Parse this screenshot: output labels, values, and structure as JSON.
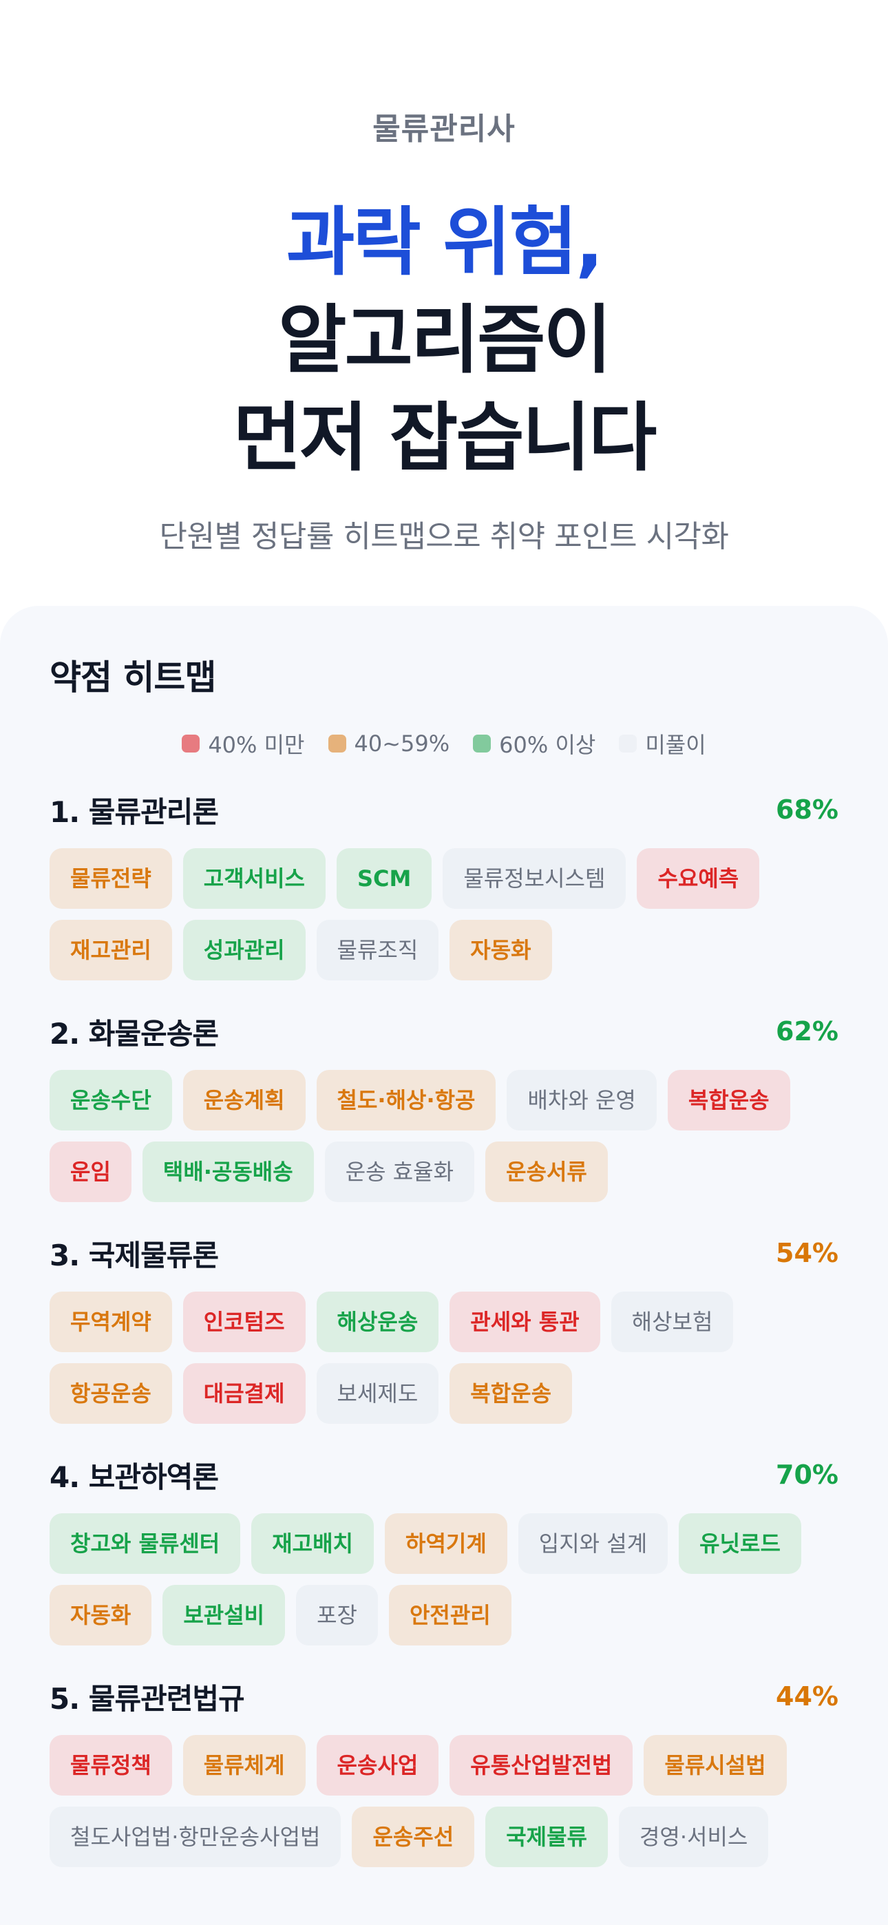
{
  "hero": {
    "eyebrow": "물류관리사",
    "headline_accent": "과락 위험,",
    "headline_line2": "알고리즘이",
    "headline_line3": "먼저 잡습니다",
    "subtitle": "단원별 정답률 히트맵으로 취약 포인트 시각화"
  },
  "heatmap": {
    "title": "약점 히트맵",
    "legend": [
      {
        "label": "40% 미만",
        "color": "#e77b80"
      },
      {
        "label": "40~59%",
        "color": "#e6b27b"
      },
      {
        "label": "60% 이상",
        "color": "#82ca9d"
      },
      {
        "label": "미풀이",
        "color": "#eef1f6"
      }
    ],
    "colors": {
      "low": "#f5dde0",
      "mid": "#f3e6da",
      "high": "#dcefe3",
      "none": "#edf1f6",
      "score_high": "#16a34a",
      "score_mid": "#d97706"
    },
    "units": [
      {
        "title": "1. 물류관리론",
        "score": "68%",
        "level": "high",
        "topics": [
          {
            "label": "물류전략",
            "level": "mid"
          },
          {
            "label": "고객서비스",
            "level": "high"
          },
          {
            "label": "SCM",
            "level": "high"
          },
          {
            "label": "물류정보시스템",
            "level": "none"
          },
          {
            "label": "수요예측",
            "level": "low"
          },
          {
            "label": "재고관리",
            "level": "mid"
          },
          {
            "label": "성과관리",
            "level": "high"
          },
          {
            "label": "물류조직",
            "level": "none"
          },
          {
            "label": "자동화",
            "level": "mid"
          }
        ]
      },
      {
        "title": "2. 화물운송론",
        "score": "62%",
        "level": "high",
        "topics": [
          {
            "label": "운송수단",
            "level": "high"
          },
          {
            "label": "운송계획",
            "level": "mid"
          },
          {
            "label": "철도·해상·항공",
            "level": "mid"
          },
          {
            "label": "배차와 운영",
            "level": "none"
          },
          {
            "label": "복합운송",
            "level": "low"
          },
          {
            "label": "운임",
            "level": "low"
          },
          {
            "label": "택배·공동배송",
            "level": "high"
          },
          {
            "label": "운송 효율화",
            "level": "none"
          },
          {
            "label": "운송서류",
            "level": "mid"
          }
        ]
      },
      {
        "title": "3. 국제물류론",
        "score": "54%",
        "level": "mid",
        "topics": [
          {
            "label": "무역계약",
            "level": "mid"
          },
          {
            "label": "인코텀즈",
            "level": "low"
          },
          {
            "label": "해상운송",
            "level": "high"
          },
          {
            "label": "관세와 통관",
            "level": "low"
          },
          {
            "label": "해상보험",
            "level": "none"
          },
          {
            "label": "항공운송",
            "level": "mid"
          },
          {
            "label": "대금결제",
            "level": "low"
          },
          {
            "label": "보세제도",
            "level": "none"
          },
          {
            "label": "복합운송",
            "level": "mid"
          }
        ]
      },
      {
        "title": "4. 보관하역론",
        "score": "70%",
        "level": "high",
        "topics": [
          {
            "label": "창고와 물류센터",
            "level": "high"
          },
          {
            "label": "재고배치",
            "level": "high"
          },
          {
            "label": "하역기계",
            "level": "mid"
          },
          {
            "label": "입지와 설계",
            "level": "none"
          },
          {
            "label": "유닛로드",
            "level": "high"
          },
          {
            "label": "자동화",
            "level": "mid"
          },
          {
            "label": "보관설비",
            "level": "high"
          },
          {
            "label": "포장",
            "level": "none"
          },
          {
            "label": "안전관리",
            "level": "mid"
          }
        ]
      },
      {
        "title": "5. 물류관련법규",
        "score": "44%",
        "level": "mid",
        "topics": [
          {
            "label": "물류정책",
            "level": "low"
          },
          {
            "label": "물류체계",
            "level": "mid"
          },
          {
            "label": "운송사업",
            "level": "low"
          },
          {
            "label": "유통산업발전법",
            "level": "low"
          },
          {
            "label": "물류시설법",
            "level": "mid"
          },
          {
            "label": "철도사업법·항만운송사업법",
            "level": "none"
          },
          {
            "label": "운송주선",
            "level": "mid"
          },
          {
            "label": "국제물류",
            "level": "high"
          },
          {
            "label": "경영·서비스",
            "level": "none"
          }
        ]
      }
    ]
  }
}
